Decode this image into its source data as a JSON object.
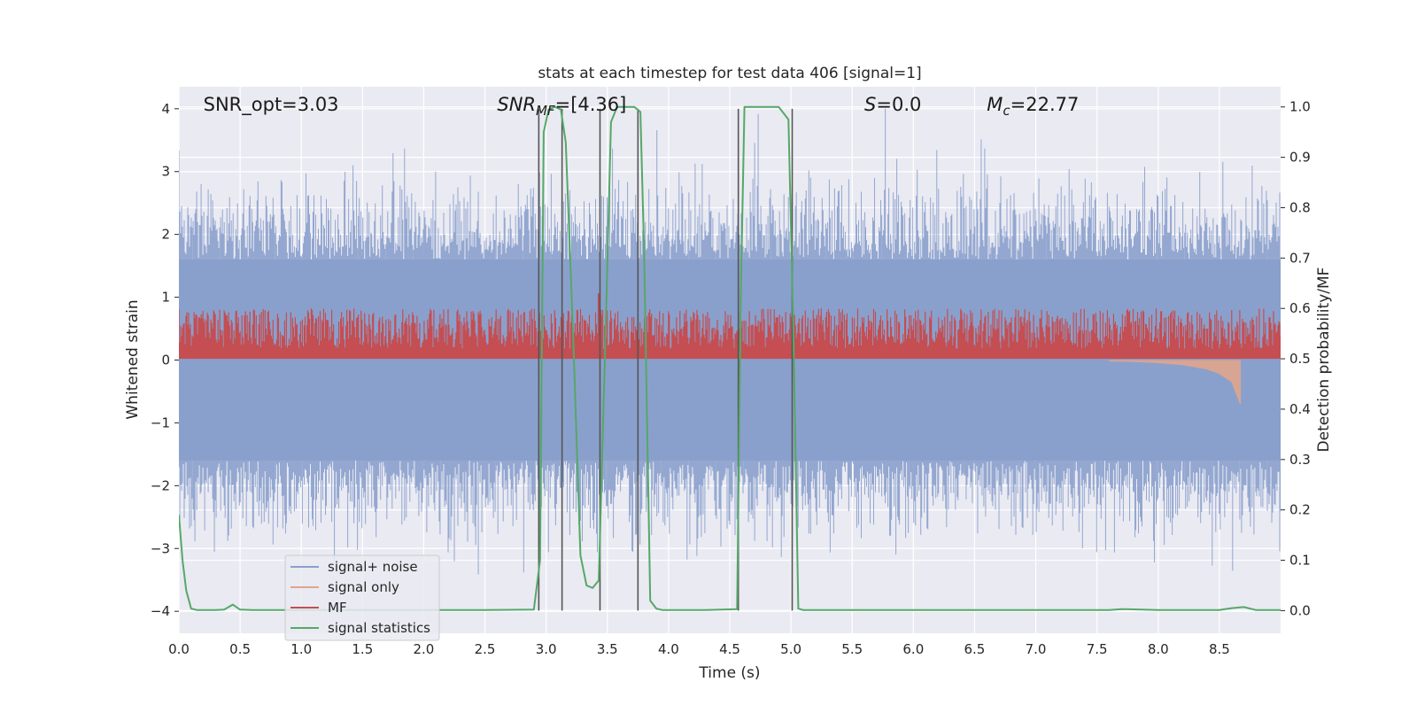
{
  "chart_data": {
    "type": "line",
    "title": "stats at each timestep for test data 406 [signal=1]",
    "xlabel": "Time (s)",
    "ylabel_left": "Whitened strain",
    "ylabel_right": "Detection probability/MF",
    "xlim": [
      0.0,
      9.0
    ],
    "ylim_left": [
      -4.35,
      4.35
    ],
    "ylim_right": [
      -0.045,
      1.04
    ],
    "x_ticks": [
      "0.0",
      "0.5",
      "1.0",
      "1.5",
      "2.0",
      "2.5",
      "3.0",
      "3.5",
      "4.0",
      "4.5",
      "5.0",
      "5.5",
      "6.0",
      "6.5",
      "7.0",
      "7.5",
      "8.0",
      "8.5"
    ],
    "y_ticks_left": [
      "−4",
      "−3",
      "−2",
      "−1",
      "0",
      "1",
      "2",
      "3",
      "4"
    ],
    "y_ticks_right": [
      "0.0",
      "0.1",
      "0.2",
      "0.3",
      "0.4",
      "0.5",
      "0.6",
      "0.7",
      "0.8",
      "0.9",
      "1.0"
    ],
    "grid": true,
    "legend_position": "lower-left",
    "colors": {
      "signal_noise": "#8aa0cc",
      "signal_only": "#e0a58c",
      "mf": "#c44e52",
      "signal_statistics": "#55a868",
      "markers": "#555555",
      "background": "#eaeaf2",
      "grid": "#ffffff"
    },
    "series": [
      {
        "name": "signal+ noise",
        "axis": "left",
        "style": "dense-noise",
        "x_range": [
          0.0,
          9.0
        ],
        "core_amplitude": [
          -1.6,
          1.6
        ],
        "peak_amplitude": [
          -4.0,
          4.0
        ]
      },
      {
        "name": "signal only",
        "axis": "left",
        "style": "chirp",
        "x": [
          7.6,
          7.8,
          8.0,
          8.2,
          8.4,
          8.5,
          8.6,
          8.67
        ],
        "envelope": [
          0.02,
          0.03,
          0.05,
          0.08,
          0.15,
          0.22,
          0.35,
          0.7
        ]
      },
      {
        "name": "MF",
        "axis": "right",
        "style": "noisy-band",
        "x_range": [
          0.0,
          9.0
        ],
        "baseline": 0.5,
        "top_range": [
          0.52,
          0.6
        ],
        "spikes": [
          {
            "x": 3.43,
            "value": 0.63
          },
          {
            "x": 4.55,
            "value": 0.55
          },
          {
            "x": 8.4,
            "value": 0.56
          }
        ]
      },
      {
        "name": "signal statistics",
        "axis": "right",
        "x": [
          0.0,
          0.03,
          0.06,
          0.1,
          0.15,
          0.3,
          0.37,
          0.44,
          0.5,
          0.6,
          1.0,
          1.5,
          2.0,
          2.5,
          2.9,
          2.95,
          2.98,
          3.02,
          3.07,
          3.12,
          3.16,
          3.22,
          3.28,
          3.33,
          3.38,
          3.43,
          3.48,
          3.53,
          3.58,
          3.65,
          3.72,
          3.77,
          3.8,
          3.85,
          3.9,
          3.95,
          4.0,
          4.3,
          4.56,
          4.59,
          4.62,
          4.7,
          4.8,
          4.9,
          4.98,
          5.02,
          5.06,
          5.1,
          5.2,
          6.0,
          7.0,
          7.6,
          7.7,
          8.0,
          8.5,
          8.6,
          8.7,
          8.8,
          9.0
        ],
        "y": [
          0.19,
          0.1,
          0.04,
          0.004,
          0.001,
          0.001,
          0.002,
          0.012,
          0.002,
          0.001,
          0.001,
          0.001,
          0.001,
          0.001,
          0.002,
          0.1,
          0.95,
          0.995,
          1.0,
          0.995,
          0.93,
          0.55,
          0.11,
          0.05,
          0.045,
          0.06,
          0.5,
          0.97,
          1.0,
          1.0,
          1.0,
          0.99,
          0.72,
          0.02,
          0.004,
          0.001,
          0.001,
          0.001,
          0.003,
          0.62,
          1.0,
          1.0,
          1.0,
          1.0,
          0.975,
          0.55,
          0.004,
          0.001,
          0.001,
          0.001,
          0.001,
          0.001,
          0.003,
          0.001,
          0.001,
          0.005,
          0.007,
          0.001,
          0.001
        ]
      }
    ],
    "marker_lines_x": [
      2.94,
      3.13,
      3.44,
      3.75,
      4.57,
      5.01
    ],
    "annotations": [
      {
        "id": "snr-opt",
        "text": "SNR_opt=3.03",
        "x": 0.2
      },
      {
        "id": "snr-mf",
        "main": "SNR",
        "sub": "MF",
        "rest": "=[4.36]",
        "x": 2.6
      },
      {
        "id": "s-value",
        "main": "S",
        "rest": "=0.0",
        "x": 5.6
      },
      {
        "id": "mc-value",
        "main": "M",
        "sub": "c",
        "rest": "=22.77",
        "x": 6.6
      }
    ]
  }
}
